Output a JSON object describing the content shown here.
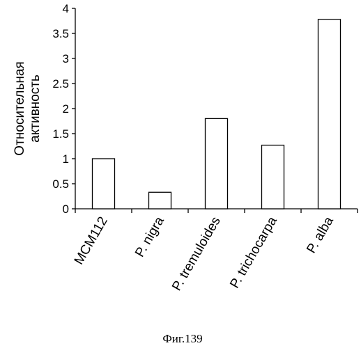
{
  "chart_data": {
    "type": "bar",
    "categories": [
      "MCM112",
      "P. nigra",
      "P. tremuloides",
      "P. trichocarpa",
      "P. alba"
    ],
    "values": [
      1.0,
      0.33,
      1.8,
      1.27,
      3.78
    ],
    "ylabel_lines": [
      "Относительная",
      "активность"
    ],
    "ylim": [
      0,
      4
    ],
    "yticks": [
      "0",
      "0.5",
      "1",
      "1.5",
      "2",
      "2.5",
      "3",
      "3.5",
      "4"
    ],
    "grid": false,
    "bar_fill": "#ffffff",
    "bar_stroke": "#000000"
  },
  "figure_caption": "Фиг.139"
}
